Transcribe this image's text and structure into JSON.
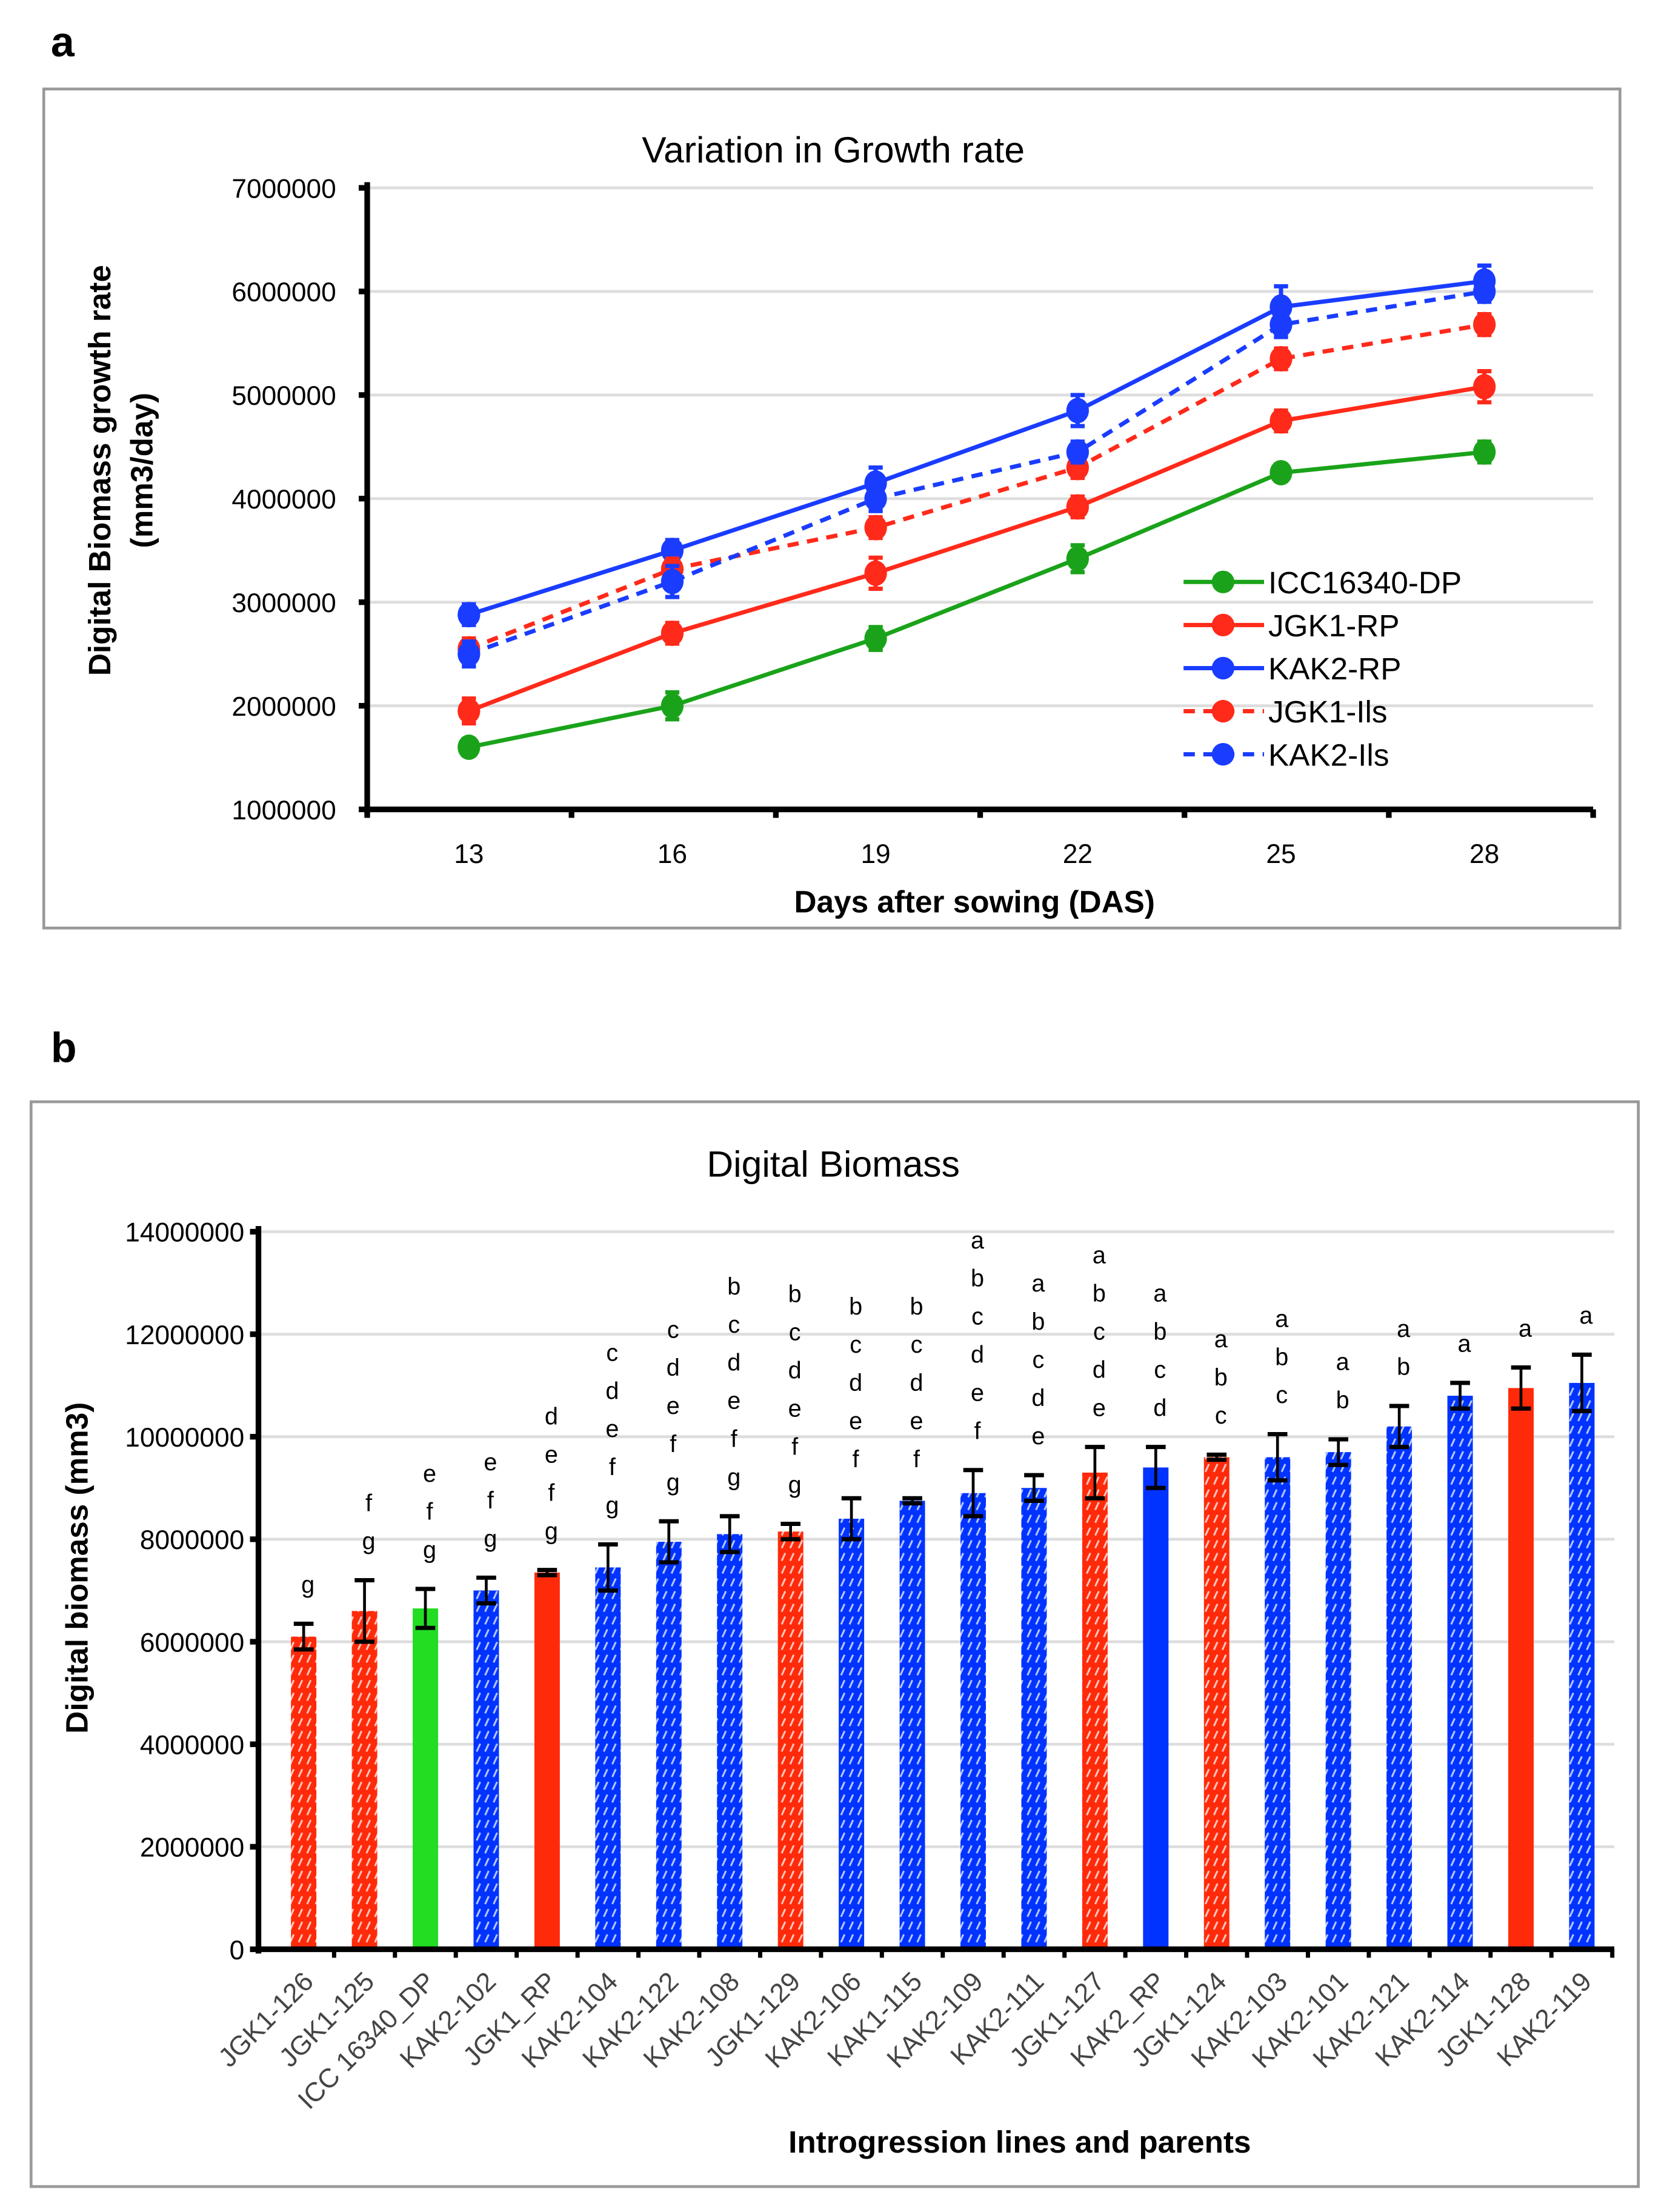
{
  "chart_data": [
    {
      "panel_label": "a",
      "type": "line",
      "title": "Variation in Growth rate",
      "xlabel": "Days after sowing (DAS)",
      "ylabel": [
        "Digital Biomass growth rate",
        "(mm3/day)"
      ],
      "x": [
        13,
        16,
        19,
        22,
        25,
        28
      ],
      "ylim": [
        1000000,
        7000000
      ],
      "yticks": [
        1000000,
        2000000,
        3000000,
        4000000,
        5000000,
        6000000,
        7000000
      ],
      "grid": true,
      "legend_position": "bottom-right",
      "series": [
        {
          "name": "ICC16340-DP",
          "color": "#1aa31a",
          "dashed": false,
          "values": [
            1600000,
            2000000,
            2650000,
            3420000,
            4250000,
            4450000
          ],
          "errors": [
            80000,
            130000,
            110000,
            130000,
            80000,
            100000
          ]
        },
        {
          "name": "JGK1-RP",
          "color": "#ff2a1a",
          "dashed": false,
          "values": [
            1950000,
            2700000,
            3280000,
            3920000,
            4750000,
            5080000
          ],
          "errors": [
            120000,
            100000,
            150000,
            100000,
            100000,
            150000
          ]
        },
        {
          "name": "KAK2-RP",
          "color": "#1a3cff",
          "dashed": false,
          "values": [
            2880000,
            3500000,
            4150000,
            4850000,
            5850000,
            6100000
          ],
          "errors": [
            100000,
            100000,
            150000,
            150000,
            200000,
            150000
          ]
        },
        {
          "name": "JGK1-Ils",
          "color": "#ff2a1a",
          "dashed": true,
          "values": [
            2550000,
            3320000,
            3720000,
            4300000,
            5350000,
            5680000
          ],
          "errors": [
            100000,
            100000,
            100000,
            100000,
            100000,
            100000
          ]
        },
        {
          "name": "KAK2-Ils",
          "color": "#1a3cff",
          "dashed": true,
          "values": [
            2500000,
            3200000,
            4000000,
            4450000,
            5680000,
            6000000
          ],
          "errors": [
            120000,
            150000,
            120000,
            100000,
            120000,
            100000
          ]
        }
      ]
    },
    {
      "panel_label": "b",
      "type": "bar",
      "title": "Digital Biomass",
      "xlabel": "Introgression lines and parents",
      "ylabel": "Digital biomass (mm3)",
      "ylim": [
        0,
        14000000
      ],
      "yticks": [
        0,
        2000000,
        4000000,
        6000000,
        8000000,
        10000000,
        12000000,
        14000000
      ],
      "grid": true,
      "colors": {
        "red": "#ff2a0a",
        "blue": "#0033ff",
        "green": "#22dd22"
      },
      "bars": [
        {
          "category": "JGK1-126",
          "value": 6100000,
          "error": 250000,
          "color": "red",
          "pattern": "hatched",
          "letters": [
            "g"
          ]
        },
        {
          "category": "JGK1-125",
          "value": 6600000,
          "error": 600000,
          "color": "red",
          "pattern": "hatched",
          "letters": [
            "f",
            "g"
          ]
        },
        {
          "category": "ICC 16340_DP",
          "value": 6650000,
          "error": 380000,
          "color": "green",
          "pattern": "solid",
          "letters": [
            "e",
            "f",
            "g"
          ]
        },
        {
          "category": "KAK2-102",
          "value": 7000000,
          "error": 250000,
          "color": "blue",
          "pattern": "hatched",
          "letters": [
            "e",
            "f",
            "g"
          ]
        },
        {
          "category": "JGK1_RP",
          "value": 7350000,
          "error": 50000,
          "color": "red",
          "pattern": "solid",
          "letters": [
            "d",
            "e",
            "f",
            "g"
          ]
        },
        {
          "category": "KAK2-104",
          "value": 7450000,
          "error": 450000,
          "color": "blue",
          "pattern": "hatched",
          "letters": [
            "c",
            "d",
            "e",
            "f",
            "g"
          ]
        },
        {
          "category": "KAK2-122",
          "value": 7950000,
          "error": 400000,
          "color": "blue",
          "pattern": "hatched",
          "letters": [
            "c",
            "d",
            "e",
            "f",
            "g"
          ]
        },
        {
          "category": "KAK2-108",
          "value": 8100000,
          "error": 350000,
          "color": "blue",
          "pattern": "hatched",
          "letters": [
            "b",
            "c",
            "d",
            "e",
            "f",
            "g"
          ]
        },
        {
          "category": "JGK1-129",
          "value": 8150000,
          "error": 150000,
          "color": "red",
          "pattern": "hatched",
          "letters": [
            "b",
            "c",
            "d",
            "e",
            "f",
            "g"
          ]
        },
        {
          "category": "KAK2-106",
          "value": 8400000,
          "error": 400000,
          "color": "blue",
          "pattern": "hatched",
          "letters": [
            "b",
            "c",
            "d",
            "e",
            "f"
          ]
        },
        {
          "category": "KAK1-115",
          "value": 8750000,
          "error": 50000,
          "color": "blue",
          "pattern": "hatched",
          "letters": [
            "b",
            "c",
            "d",
            "e",
            "f"
          ]
        },
        {
          "category": "KAK2-109",
          "value": 8900000,
          "error": 450000,
          "color": "blue",
          "pattern": "hatched",
          "letters": [
            "a",
            "b",
            "c",
            "d",
            "e",
            "f"
          ]
        },
        {
          "category": "KAK2-111",
          "value": 9000000,
          "error": 250000,
          "color": "blue",
          "pattern": "hatched",
          "letters": [
            "a",
            "b",
            "c",
            "d",
            "e"
          ]
        },
        {
          "category": "JGK1-127",
          "value": 9300000,
          "error": 500000,
          "color": "red",
          "pattern": "hatched",
          "letters": [
            "a",
            "b",
            "c",
            "d",
            "e"
          ]
        },
        {
          "category": "KAK2_RP",
          "value": 9400000,
          "error": 400000,
          "color": "blue",
          "pattern": "solid",
          "letters": [
            "a",
            "b",
            "c",
            "d"
          ]
        },
        {
          "category": "JGK1-124",
          "value": 9600000,
          "error": 50000,
          "color": "red",
          "pattern": "hatched",
          "letters": [
            "a",
            "b",
            "c"
          ]
        },
        {
          "category": "KAK2-103",
          "value": 9600000,
          "error": 450000,
          "color": "blue",
          "pattern": "hatched",
          "letters": [
            "a",
            "b",
            "c"
          ]
        },
        {
          "category": "KAK2-101",
          "value": 9700000,
          "error": 250000,
          "color": "blue",
          "pattern": "hatched",
          "letters": [
            "a",
            "b"
          ]
        },
        {
          "category": "KAK2-121",
          "value": 10200000,
          "error": 400000,
          "color": "blue",
          "pattern": "hatched",
          "letters": [
            "a",
            "b"
          ]
        },
        {
          "category": "KAK2-114",
          "value": 10800000,
          "error": 250000,
          "color": "blue",
          "pattern": "hatched",
          "letters": [
            "a"
          ]
        },
        {
          "category": "JGK1-128",
          "value": 10950000,
          "error": 400000,
          "color": "red",
          "pattern": "solid",
          "letters": [
            "a"
          ]
        },
        {
          "category": "KAK2-119",
          "value": 11050000,
          "error": 550000,
          "color": "blue",
          "pattern": "hatched",
          "letters": [
            "a"
          ]
        }
      ]
    }
  ]
}
